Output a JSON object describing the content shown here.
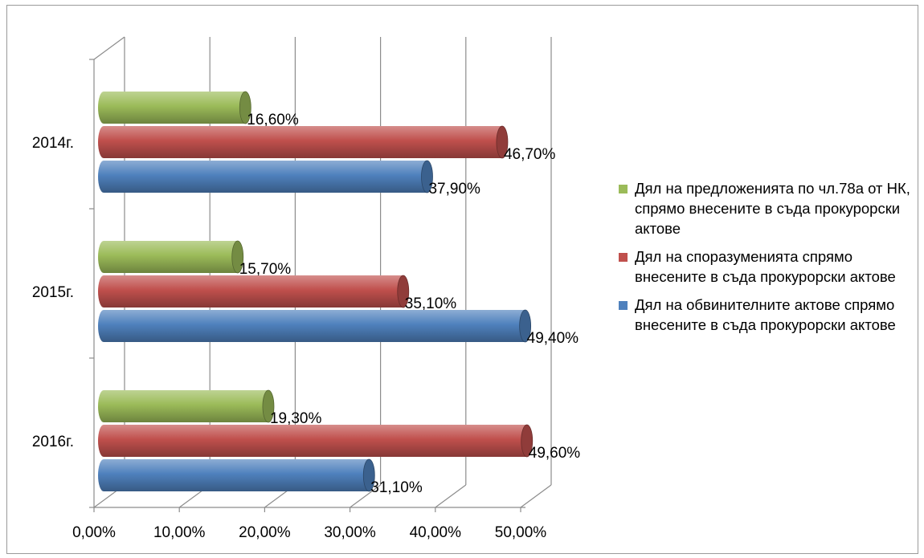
{
  "chart_data": {
    "type": "bar",
    "orientation": "horizontal",
    "categories": [
      "2014г.",
      "2015г.",
      "2016г."
    ],
    "series": [
      {
        "name": "Дял на предложенията по чл.78а от НК, спрямо внесените в съда прокурорски актове",
        "color": "#9bbb59",
        "values": [
          16.6,
          15.7,
          19.3
        ],
        "labels": [
          "16,60%",
          "15,70%",
          "19,30%"
        ]
      },
      {
        "name": "Дял на споразуменията спрямо внесените в съда прокурорски актове",
        "color": "#c0504d",
        "values": [
          46.7,
          35.1,
          49.6
        ],
        "labels": [
          "46,70%",
          "35,10%",
          "49,60%"
        ]
      },
      {
        "name": "Дял на обвинителните актове спрямо внесените в съда прокурорски актове",
        "color": "#4f81bd",
        "values": [
          37.9,
          49.4,
          31.1
        ],
        "labels": [
          "37,90%",
          "49,40%",
          "31,10%"
        ]
      }
    ],
    "x_ticks": [
      "0,00%",
      "10,00%",
      "20,00%",
      "30,00%",
      "40,00%",
      "50,00%"
    ],
    "xlim": [
      0,
      50
    ],
    "grid": true,
    "legend_position": "right",
    "style": "3d-cylinder"
  }
}
